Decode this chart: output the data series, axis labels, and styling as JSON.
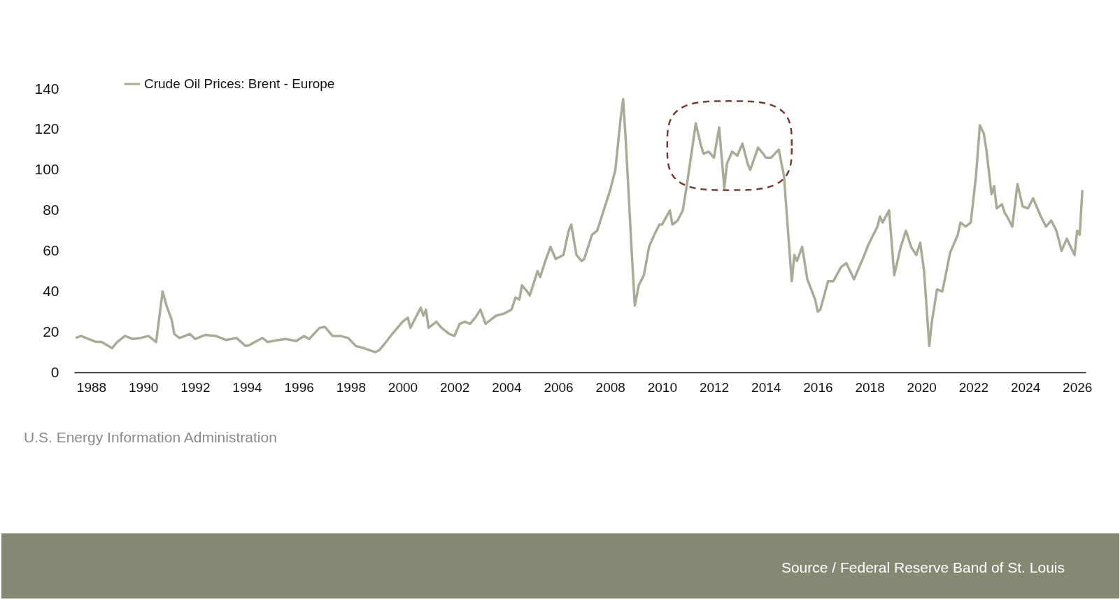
{
  "chart_data": {
    "type": "line",
    "annotations": [
      "U.S. Energy Information Administration",
      "Source  /  Federal Reserve Band of St. Louis"
    ],
    "x": [
      1987.4,
      1987.6,
      1987.9,
      1988.2,
      1988.4,
      1988.8,
      1989.0,
      1989.3,
      1989.6,
      1989.9,
      1990.2,
      1990.5,
      1990.75,
      1990.9,
      1991.1,
      1991.2,
      1991.4,
      1991.8,
      1992.0,
      1992.4,
      1992.8,
      1993.2,
      1993.6,
      1993.95,
      1994.1,
      1994.3,
      1994.6,
      1994.8,
      1995.2,
      1995.5,
      1995.9,
      1996.2,
      1996.4,
      1996.8,
      1997.0,
      1997.3,
      1997.6,
      1997.9,
      1998.2,
      1998.5,
      1998.95,
      1999.1,
      1999.3,
      1999.6,
      2000.0,
      2000.2,
      2000.3,
      2000.7,
      2000.8,
      2000.9,
      2001.0,
      2001.3,
      2001.5,
      2001.8,
      2002.0,
      2002.2,
      2002.4,
      2002.6,
      2002.8,
      2003.0,
      2003.2,
      2003.3,
      2003.6,
      2003.9,
      2004.2,
      2004.35,
      2004.5,
      2004.6,
      2004.8,
      2004.9,
      2005.2,
      2005.3,
      2005.5,
      2005.7,
      2005.9,
      2006.2,
      2006.4,
      2006.5,
      2006.7,
      2006.9,
      2007.0,
      2007.3,
      2007.5,
      2007.8,
      2008.0,
      2008.2,
      2008.4,
      2008.5,
      2008.6,
      2008.85,
      2008.95,
      2009.1,
      2009.3,
      2009.5,
      2009.7,
      2009.9,
      2010.0,
      2010.3,
      2010.4,
      2010.6,
      2010.8,
      2010.95,
      2011.2,
      2011.3,
      2011.5,
      2011.6,
      2011.8,
      2012.0,
      2012.2,
      2012.4,
      2012.5,
      2012.7,
      2012.9,
      2013.1,
      2013.3,
      2013.4,
      2013.7,
      2013.9,
      2014.0,
      2014.2,
      2014.5,
      2014.7,
      2014.9,
      2015.0,
      2015.1,
      2015.2,
      2015.4,
      2015.6,
      2015.9,
      2016.0,
      2016.1,
      2016.4,
      2016.6,
      2016.9,
      2017.1,
      2017.4,
      2017.5,
      2017.8,
      2017.95,
      2018.3,
      2018.4,
      2018.5,
      2018.75,
      2018.95,
      2019.2,
      2019.4,
      2019.6,
      2019.8,
      2019.95,
      2020.1,
      2020.3,
      2020.4,
      2020.6,
      2020.8,
      2020.9,
      2021.1,
      2021.4,
      2021.5,
      2021.7,
      2021.9,
      2022.1,
      2022.25,
      2022.4,
      2022.5,
      2022.7,
      2022.8,
      2022.9,
      2023.1,
      2023.2,
      2023.3,
      2023.5,
      2023.7,
      2023.9,
      2024.1,
      2024.3,
      2024.6,
      2024.8,
      2025.0,
      2025.2,
      2025.4,
      2025.6,
      2025.9,
      2026.0,
      2026.1,
      2026.2
    ],
    "series": [
      {
        "name": "Crude Oil Prices: Brent - Europe",
        "color": "#a8ac97",
        "values": [
          17,
          18,
          16.5,
          15,
          15,
          12,
          15,
          18,
          16.5,
          17,
          18,
          15,
          40,
          33,
          26,
          19,
          17,
          19,
          16.5,
          18.5,
          18,
          16,
          17,
          13,
          13.5,
          15,
          17,
          15,
          16,
          16.5,
          15.5,
          18,
          16.5,
          22,
          22.5,
          18,
          18,
          17,
          13,
          12,
          10,
          11,
          14,
          19,
          25,
          27,
          22,
          32,
          28,
          31,
          22,
          25,
          22,
          19,
          18,
          24,
          25,
          24,
          27,
          31,
          24,
          25,
          28,
          29,
          31,
          37,
          36,
          43,
          40,
          38,
          50,
          47,
          55,
          62,
          56,
          58,
          70,
          73,
          58,
          55,
          56,
          68,
          70,
          82,
          90,
          100,
          125,
          135,
          115,
          55,
          33,
          43,
          48,
          62,
          68,
          73,
          73,
          80,
          73,
          75,
          80,
          92,
          114,
          123,
          112,
          108,
          109,
          106,
          121,
          91,
          103,
          109,
          107,
          113,
          103,
          100,
          111,
          108,
          106,
          106,
          110,
          97,
          62,
          45,
          58,
          55,
          62,
          46,
          36,
          30,
          31,
          45,
          45,
          52,
          54,
          46,
          49,
          58,
          63,
          72,
          77,
          74,
          80,
          48,
          62,
          70,
          62,
          58,
          64,
          50,
          13,
          25,
          41,
          40,
          46,
          59,
          68,
          74,
          72,
          74,
          97,
          122,
          118,
          110,
          88,
          92,
          81,
          83,
          79,
          77,
          72,
          93,
          82,
          81,
          86,
          77,
          72,
          75,
          70,
          60,
          66,
          58,
          70,
          68,
          90
        ]
      }
    ],
    "xlim": [
      1987.34,
      2026.33
    ],
    "xticks": [
      1988,
      1990,
      1992,
      1994,
      1996,
      1998,
      2000,
      2002,
      2004,
      2006,
      2008,
      2010,
      2012,
      2014,
      2016,
      2018,
      2020,
      2022,
      2024,
      2026
    ],
    "ylim": [
      0,
      140
    ],
    "yticks": [
      0,
      20,
      40,
      60,
      80,
      100,
      120,
      140
    ],
    "grid": false,
    "legend": "top left",
    "line_style": "solid",
    "marker": "none"
  }
}
